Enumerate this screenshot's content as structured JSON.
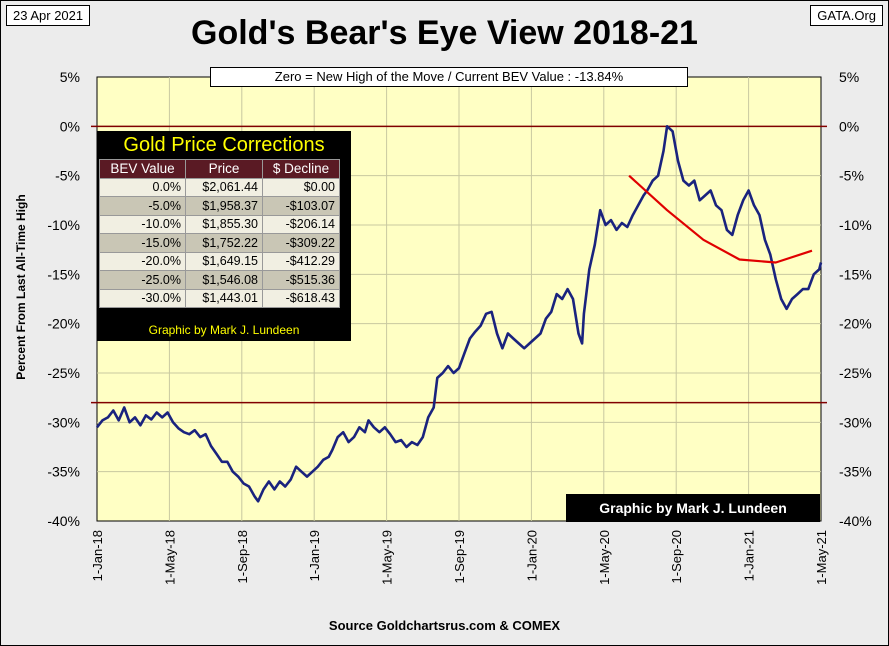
{
  "header": {
    "date": "23 Apr 2021",
    "site": "GATA.Org",
    "title": "Gold's Bear's Eye View 2018-21",
    "subtitle": "Zero = New High of the Move / Current  BEV Value : -13.84%",
    "source": "Source Goldchartsrus.com  & COMEX",
    "credit": "Graphic by Mark J. Lundeen"
  },
  "chart_data": {
    "type": "line",
    "title": "Gold's Bear's Eye View 2018-21",
    "ylabel": "Percent  From  Last  All-Time  High",
    "xlabel": "",
    "ylim": [
      -40,
      5
    ],
    "y_ticks": [
      "5%",
      "0%",
      "-5%",
      "-10%",
      "-15%",
      "-20%",
      "-25%",
      "-30%",
      "-35%",
      "-40%"
    ],
    "x_ticks": [
      "1-Jan-18",
      "1-May-18",
      "1-Sep-18",
      "1-Jan-19",
      "1-May-19",
      "1-Sep-19",
      "1-Jan-20",
      "1-May-20",
      "1-Sep-20",
      "1-Jan-21",
      "1-May-21"
    ],
    "reference_lines": [
      {
        "value": 0,
        "color": "#800000"
      },
      {
        "value": -28,
        "color": "#800000"
      }
    ],
    "series": [
      {
        "name": "BEV",
        "color": "#1a237e",
        "points": [
          [
            0,
            -30.5
          ],
          [
            0.3,
            -29.8
          ],
          [
            0.6,
            -29.5
          ],
          [
            0.9,
            -28.8
          ],
          [
            1.2,
            -29.8
          ],
          [
            1.5,
            -28.5
          ],
          [
            1.8,
            -30.0
          ],
          [
            2.1,
            -29.5
          ],
          [
            2.4,
            -30.3
          ],
          [
            2.7,
            -29.3
          ],
          [
            3.0,
            -29.7
          ],
          [
            3.3,
            -29.0
          ],
          [
            3.6,
            -29.5
          ],
          [
            3.9,
            -29.0
          ],
          [
            4.2,
            -30.0
          ],
          [
            4.5,
            -30.6
          ],
          [
            4.8,
            -31.0
          ],
          [
            5.1,
            -31.2
          ],
          [
            5.4,
            -30.8
          ],
          [
            5.7,
            -31.5
          ],
          [
            6.0,
            -31.2
          ],
          [
            6.3,
            -32.4
          ],
          [
            6.6,
            -33.2
          ],
          [
            6.9,
            -34.0
          ],
          [
            7.2,
            -34.0
          ],
          [
            7.5,
            -35.0
          ],
          [
            7.8,
            -35.5
          ],
          [
            8.1,
            -36.2
          ],
          [
            8.4,
            -36.5
          ],
          [
            8.7,
            -37.5
          ],
          [
            8.9,
            -38.0
          ],
          [
            9.2,
            -36.8
          ],
          [
            9.5,
            -36.0
          ],
          [
            9.8,
            -36.8
          ],
          [
            10.1,
            -36.0
          ],
          [
            10.4,
            -36.5
          ],
          [
            10.7,
            -35.8
          ],
          [
            11.0,
            -34.5
          ],
          [
            11.3,
            -35.0
          ],
          [
            11.6,
            -35.5
          ],
          [
            11.9,
            -35.0
          ],
          [
            12.2,
            -34.5
          ],
          [
            12.5,
            -33.8
          ],
          [
            12.8,
            -33.5
          ],
          [
            13.0,
            -32.8
          ],
          [
            13.3,
            -31.5
          ],
          [
            13.6,
            -31.0
          ],
          [
            13.9,
            -32.0
          ],
          [
            14.2,
            -31.5
          ],
          [
            14.5,
            -30.5
          ],
          [
            14.8,
            -31.0
          ],
          [
            15.0,
            -29.8
          ],
          [
            15.3,
            -30.5
          ],
          [
            15.6,
            -31.0
          ],
          [
            15.9,
            -30.5
          ],
          [
            16.2,
            -31.2
          ],
          [
            16.5,
            -32.0
          ],
          [
            16.8,
            -31.8
          ],
          [
            17.1,
            -32.5
          ],
          [
            17.4,
            -32.0
          ],
          [
            17.7,
            -32.3
          ],
          [
            18.0,
            -31.5
          ],
          [
            18.3,
            -29.5
          ],
          [
            18.6,
            -28.5
          ],
          [
            18.8,
            -25.5
          ],
          [
            19.1,
            -25.0
          ],
          [
            19.4,
            -24.3
          ],
          [
            19.7,
            -25.0
          ],
          [
            20.0,
            -24.5
          ],
          [
            20.3,
            -23.0
          ],
          [
            20.6,
            -21.5
          ],
          [
            20.9,
            -20.8
          ],
          [
            21.2,
            -20.2
          ],
          [
            21.5,
            -19.0
          ],
          [
            21.8,
            -18.8
          ],
          [
            22.1,
            -21.0
          ],
          [
            22.4,
            -22.5
          ],
          [
            22.7,
            -21.0
          ],
          [
            23.0,
            -21.5
          ],
          [
            23.3,
            -22.0
          ],
          [
            23.6,
            -22.5
          ],
          [
            23.9,
            -22.0
          ],
          [
            24.2,
            -21.5
          ],
          [
            24.5,
            -21.0
          ],
          [
            24.8,
            -19.5
          ],
          [
            25.1,
            -18.8
          ],
          [
            25.4,
            -17.0
          ],
          [
            25.7,
            -17.5
          ],
          [
            26.0,
            -16.5
          ],
          [
            26.3,
            -17.5
          ],
          [
            26.6,
            -21.0
          ],
          [
            26.8,
            -22.0
          ],
          [
            26.9,
            -19.0
          ],
          [
            27.2,
            -14.5
          ],
          [
            27.5,
            -12.0
          ],
          [
            27.8,
            -8.5
          ],
          [
            28.1,
            -10.0
          ],
          [
            28.4,
            -9.5
          ],
          [
            28.7,
            -10.5
          ],
          [
            29.0,
            -9.8
          ],
          [
            29.3,
            -10.2
          ],
          [
            29.6,
            -9.0
          ],
          [
            29.9,
            -8.0
          ],
          [
            30.2,
            -7.0
          ],
          [
            30.4,
            -6.5
          ],
          [
            30.7,
            -5.5
          ],
          [
            31.0,
            -5.0
          ],
          [
            31.3,
            -2.5
          ],
          [
            31.5,
            0
          ],
          [
            31.8,
            -0.5
          ],
          [
            32.1,
            -3.5
          ],
          [
            32.4,
            -5.5
          ],
          [
            32.7,
            -6.0
          ],
          [
            33.0,
            -5.5
          ],
          [
            33.3,
            -7.5
          ],
          [
            33.6,
            -7.0
          ],
          [
            33.9,
            -6.5
          ],
          [
            34.2,
            -8.0
          ],
          [
            34.5,
            -8.5
          ],
          [
            34.8,
            -10.5
          ],
          [
            35.1,
            -11.0
          ],
          [
            35.4,
            -9.0
          ],
          [
            35.7,
            -7.5
          ],
          [
            36.0,
            -6.5
          ],
          [
            36.3,
            -8.0
          ],
          [
            36.6,
            -9.0
          ],
          [
            36.9,
            -11.5
          ],
          [
            37.2,
            -13.0
          ],
          [
            37.5,
            -15.5
          ],
          [
            37.8,
            -17.5
          ],
          [
            38.1,
            -18.5
          ],
          [
            38.4,
            -17.5
          ],
          [
            38.7,
            -17.0
          ],
          [
            39.0,
            -16.5
          ],
          [
            39.3,
            -16.5
          ],
          [
            39.6,
            -15.0
          ],
          [
            39.9,
            -14.5
          ],
          [
            40.0,
            -13.8
          ]
        ]
      },
      {
        "name": "trend",
        "color": "#e00000",
        "points": [
          [
            29.4,
            -5.0
          ],
          [
            31.5,
            -8.5
          ],
          [
            33.5,
            -11.5
          ],
          [
            35.5,
            -13.5
          ],
          [
            37.5,
            -13.8
          ],
          [
            39.5,
            -12.6
          ]
        ]
      }
    ]
  },
  "correction_table": {
    "title": "Gold Price Corrections",
    "headers": [
      "BEV Value",
      "Price",
      "$ Decline"
    ],
    "rows": [
      [
        "0.0%",
        "$2,061.44",
        "$0.00"
      ],
      [
        "-5.0%",
        "$1,958.37",
        "-$103.07"
      ],
      [
        "-10.0%",
        "$1,855.30",
        "-$206.14"
      ],
      [
        "-15.0%",
        "$1,752.22",
        "-$309.22"
      ],
      [
        "-20.0%",
        "$1,649.15",
        "-$412.29"
      ],
      [
        "-25.0%",
        "$1,546.08",
        "-$515.36"
      ],
      [
        "-30.0%",
        "$1,443.01",
        "-$618.43"
      ]
    ],
    "credit": "Graphic by Mark J. Lundeen"
  },
  "colors": {
    "plot_bg": "#ffffc4",
    "series": "#1a237e",
    "trend": "#e00000",
    "reference": "#800000"
  }
}
